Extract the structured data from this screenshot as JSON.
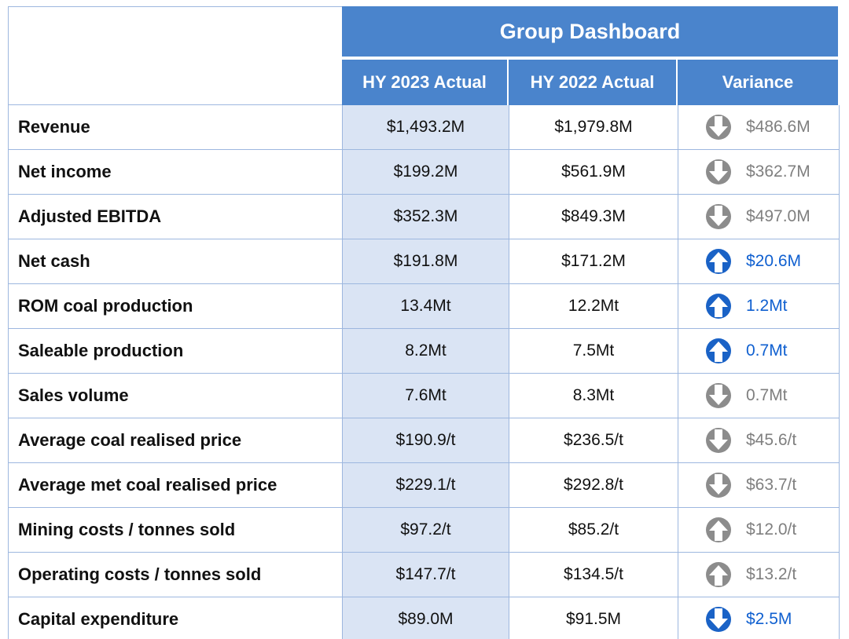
{
  "header": {
    "title": "Group Dashboard",
    "columns": [
      "HY 2023 Actual",
      "HY 2022 Actual",
      "Variance"
    ]
  },
  "table": {
    "rows": [
      {
        "label": "Revenue",
        "hy2023": "$1,493.2M",
        "hy2022": "$1,979.8M",
        "variance": "$486.6M",
        "direction": "down",
        "tone": "grey"
      },
      {
        "label": "Net income",
        "hy2023": "$199.2M",
        "hy2022": "$561.9M",
        "variance": "$362.7M",
        "direction": "down",
        "tone": "grey"
      },
      {
        "label": "Adjusted EBITDA",
        "hy2023": "$352.3M",
        "hy2022": "$849.3M",
        "variance": "$497.0M",
        "direction": "down",
        "tone": "grey"
      },
      {
        "label": "Net cash",
        "hy2023": "$191.8M",
        "hy2022": "$171.2M",
        "variance": "$20.6M",
        "direction": "up",
        "tone": "blue"
      },
      {
        "label": "ROM coal production",
        "hy2023": "13.4Mt",
        "hy2022": "12.2Mt",
        "variance": "1.2Mt",
        "direction": "up",
        "tone": "blue"
      },
      {
        "label": "Saleable production",
        "hy2023": "8.2Mt",
        "hy2022": "7.5Mt",
        "variance": "0.7Mt",
        "direction": "up",
        "tone": "blue"
      },
      {
        "label": "Sales volume",
        "hy2023": "7.6Mt",
        "hy2022": "8.3Mt",
        "variance": "0.7Mt",
        "direction": "down",
        "tone": "grey"
      },
      {
        "label": "Average coal realised price",
        "hy2023": "$190.9/t",
        "hy2022": "$236.5/t",
        "variance": "$45.6/t",
        "direction": "down",
        "tone": "grey"
      },
      {
        "label": "Average met coal realised price",
        "hy2023": "$229.1/t",
        "hy2022": "$292.8/t",
        "variance": "$63.7/t",
        "direction": "down",
        "tone": "grey"
      },
      {
        "label": "Mining costs / tonnes sold",
        "hy2023": "$97.2/t",
        "hy2022": "$85.2/t",
        "variance": "$12.0/t",
        "direction": "up",
        "tone": "grey"
      },
      {
        "label": "Operating costs / tonnes sold",
        "hy2023": "$147.7/t",
        "hy2022": "$134.5/t",
        "variance": "$13.2/t",
        "direction": "up",
        "tone": "grey"
      },
      {
        "label": "Capital expenditure",
        "hy2023": "$89.0M",
        "hy2022": "$91.5M",
        "variance": "$2.5M",
        "direction": "down",
        "tone": "blue"
      }
    ]
  }
}
